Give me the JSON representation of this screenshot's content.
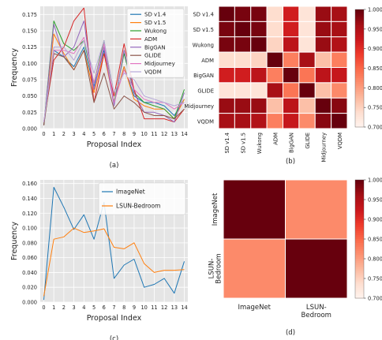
{
  "chart_data": [
    {
      "type": "line",
      "panel_label": "(a)",
      "xlabel": "Proposal Index",
      "ylabel": "Frequency",
      "x": [
        0,
        1,
        2,
        3,
        4,
        5,
        6,
        7,
        8,
        9,
        10,
        11,
        12,
        13,
        14
      ],
      "ylim": [
        0.0,
        0.1875
      ],
      "yticks": [
        "0.000",
        "0.025",
        "0.050",
        "0.075",
        "0.100",
        "0.125",
        "0.150",
        "0.175"
      ],
      "grid": true,
      "legend_position": "top-right",
      "series": [
        {
          "name": "SD v1.4",
          "color": "#1f77b4",
          "values": [
            0.005,
            0.12,
            0.11,
            0.095,
            0.125,
            0.065,
            0.12,
            0.04,
            0.095,
            0.05,
            0.04,
            0.04,
            0.035,
            0.02,
            0.045
          ]
        },
        {
          "name": "SD v1.5",
          "color": "#ff7f0e",
          "values": [
            0.005,
            0.145,
            0.115,
            0.09,
            0.12,
            0.055,
            0.115,
            0.04,
            0.095,
            0.045,
            0.035,
            0.03,
            0.03,
            0.015,
            0.045
          ]
        },
        {
          "name": "Wukong",
          "color": "#2ca02c",
          "values": [
            0.005,
            0.165,
            0.13,
            0.12,
            0.135,
            0.07,
            0.135,
            0.04,
            0.115,
            0.055,
            0.04,
            0.035,
            0.03,
            0.015,
            0.06
          ]
        },
        {
          "name": "ADM",
          "color": "#d62728",
          "values": [
            0.01,
            0.105,
            0.125,
            0.165,
            0.185,
            0.04,
            0.115,
            0.05,
            0.13,
            0.06,
            0.015,
            0.015,
            0.015,
            0.01,
            0.03
          ]
        },
        {
          "name": "BigGAN",
          "color": "#9467bd",
          "values": [
            0.005,
            0.16,
            0.11,
            0.125,
            0.165,
            0.06,
            0.125,
            0.035,
            0.12,
            0.055,
            0.025,
            0.025,
            0.02,
            0.01,
            0.055
          ]
        },
        {
          "name": "GLIDE",
          "color": "#8c564b",
          "values": [
            0.005,
            0.115,
            0.11,
            0.09,
            0.12,
            0.04,
            0.085,
            0.03,
            0.05,
            0.04,
            0.025,
            0.02,
            0.02,
            0.015,
            0.03
          ]
        },
        {
          "name": "Midjourney",
          "color": "#e377c2",
          "values": [
            0.01,
            0.12,
            0.12,
            0.115,
            0.14,
            0.07,
            0.13,
            0.04,
            0.09,
            0.06,
            0.045,
            0.04,
            0.04,
            0.03,
            0.04
          ]
        },
        {
          "name": "VQDM",
          "color": "#b6a8d8",
          "values": [
            0.01,
            0.125,
            0.125,
            0.105,
            0.135,
            0.085,
            0.135,
            0.055,
            0.085,
            0.075,
            0.05,
            0.045,
            0.04,
            0.035,
            0.04
          ]
        }
      ]
    },
    {
      "type": "heatmap",
      "panel_label": "(b)",
      "labels": [
        "SD v1.4",
        "SD v1.5",
        "Wukong",
        "ADM",
        "BigGAN",
        "GLIDE",
        "Midjourney",
        "VQDM"
      ],
      "values": [
        [
          1.0,
          0.99,
          0.99,
          0.74,
          0.92,
          0.73,
          0.97,
          0.96
        ],
        [
          0.99,
          1.0,
          0.99,
          0.74,
          0.92,
          0.73,
          0.97,
          0.96
        ],
        [
          0.99,
          0.99,
          1.0,
          0.75,
          0.94,
          0.73,
          0.97,
          0.95
        ],
        [
          0.74,
          0.74,
          0.75,
          1.0,
          0.83,
          0.96,
          0.77,
          0.83
        ],
        [
          0.92,
          0.92,
          0.94,
          0.83,
          1.0,
          0.84,
          0.94,
          0.93
        ],
        [
          0.73,
          0.73,
          0.73,
          0.96,
          0.84,
          1.0,
          0.77,
          0.82
        ],
        [
          0.97,
          0.97,
          0.97,
          0.77,
          0.94,
          0.77,
          1.0,
          0.98
        ],
        [
          0.96,
          0.96,
          0.95,
          0.83,
          0.93,
          0.82,
          0.98,
          1.0
        ]
      ],
      "colorbar_range": [
        0.7,
        1.0
      ],
      "colorbar_ticks": [
        "0.700",
        "0.750",
        "0.800",
        "0.850",
        "0.900",
        "0.950",
        "1.000"
      ]
    },
    {
      "type": "line",
      "panel_label": "(c)",
      "xlabel": "Proposal Index",
      "ylabel": "Frequency",
      "x": [
        0,
        1,
        2,
        3,
        4,
        5,
        6,
        7,
        8,
        9,
        10,
        11,
        12,
        13,
        14
      ],
      "ylim": [
        0.0,
        0.165
      ],
      "yticks": [
        "0.000",
        "0.020",
        "0.040",
        "0.060",
        "0.080",
        "0.100",
        "0.120",
        "0.140",
        "0.160"
      ],
      "grid": true,
      "legend_position": "top-right",
      "series": [
        {
          "name": "ImageNet",
          "color": "#1f77b4",
          "values": [
            0.003,
            0.155,
            0.128,
            0.098,
            0.118,
            0.085,
            0.135,
            0.032,
            0.05,
            0.058,
            0.02,
            0.024,
            0.032,
            0.012,
            0.055
          ]
        },
        {
          "name": "LSUN-Bedroom",
          "color": "#ff7f0e",
          "values": [
            0.008,
            0.085,
            0.088,
            0.1,
            0.094,
            0.096,
            0.099,
            0.074,
            0.072,
            0.08,
            0.052,
            0.04,
            0.043,
            0.043,
            0.044
          ]
        }
      ]
    },
    {
      "type": "heatmap",
      "panel_label": "(d)",
      "labels": [
        "ImageNet",
        "LSUN-\nBedroom"
      ],
      "values": [
        [
          1.0,
          0.82
        ],
        [
          0.82,
          1.0
        ]
      ],
      "colorbar_range": [
        0.7,
        1.0
      ],
      "colorbar_ticks": [
        "0.700",
        "0.750",
        "0.800",
        "0.850",
        "0.900",
        "0.950",
        "1.000"
      ]
    }
  ]
}
